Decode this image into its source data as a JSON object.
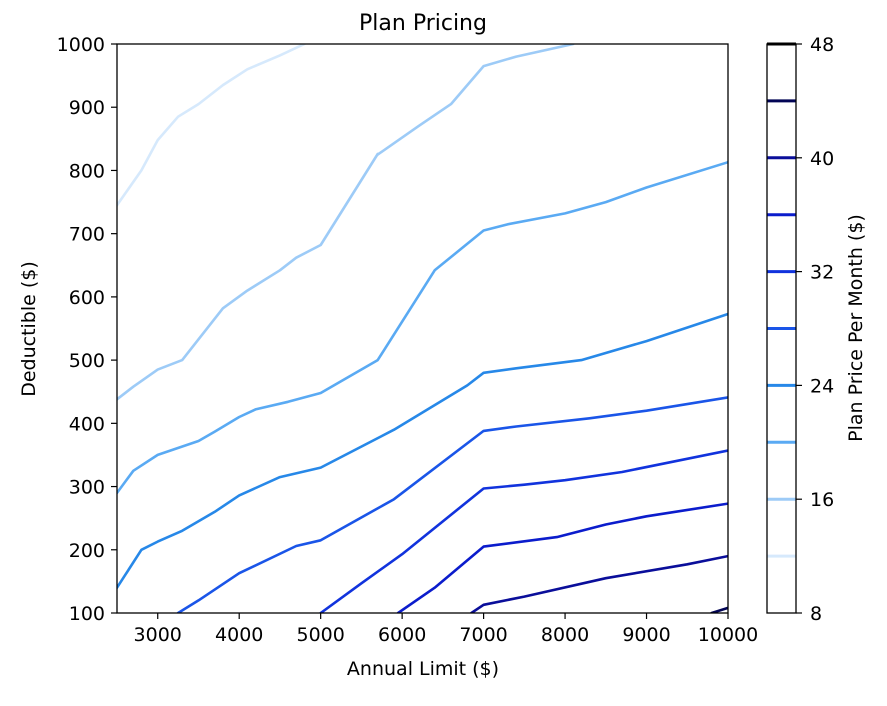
{
  "chart_data": {
    "type": "contour",
    "title": "Plan Pricing",
    "xlabel": "Annual Limit ($)",
    "ylabel": "Deductible ($)",
    "xlim": [
      2500,
      10000
    ],
    "ylim": [
      100,
      1000
    ],
    "x_ticks": [
      3000,
      4000,
      5000,
      6000,
      7000,
      8000,
      9000,
      10000
    ],
    "y_ticks": [
      100,
      200,
      300,
      400,
      500,
      600,
      700,
      800,
      900,
      1000
    ],
    "grid": false,
    "colorbar": {
      "label": "Plan Price Per Month ($)",
      "range": [
        8,
        48
      ],
      "ticks": [
        8,
        16,
        24,
        32,
        40,
        48
      ]
    },
    "contour_levels": [
      {
        "level": 12,
        "color": "#d6e9fc",
        "points": [
          [
            2500,
            745
          ],
          [
            2800,
            800
          ],
          [
            3000,
            848
          ],
          [
            3250,
            885
          ],
          [
            3500,
            905
          ],
          [
            3800,
            935
          ],
          [
            4100,
            960
          ],
          [
            4500,
            982
          ],
          [
            4800,
            1000
          ]
        ]
      },
      {
        "level": 16,
        "color": "#9dcbf7",
        "points": [
          [
            5700,
            825
          ],
          [
            6200,
            870
          ],
          [
            6600,
            905
          ],
          [
            7000,
            965
          ],
          [
            7400,
            980
          ],
          [
            8100,
            1000
          ]
        ]
      },
      {
        "level": 16,
        "color": "#9dcbf7",
        "points": [
          [
            2500,
            438
          ],
          [
            2700,
            458
          ],
          [
            3000,
            485
          ],
          [
            3300,
            500
          ],
          [
            3800,
            582
          ],
          [
            4100,
            610
          ],
          [
            4500,
            642
          ],
          [
            4700,
            662
          ],
          [
            5000,
            682
          ],
          [
            5700,
            826
          ]
        ]
      },
      {
        "level": 20,
        "color": "#5aaaf3",
        "points": [
          [
            2500,
            290
          ],
          [
            2700,
            325
          ],
          [
            3000,
            350
          ],
          [
            3500,
            372
          ],
          [
            3700,
            387
          ],
          [
            4000,
            410
          ],
          [
            4200,
            422
          ],
          [
            4600,
            434
          ],
          [
            5000,
            448
          ],
          [
            5700,
            500
          ],
          [
            6400,
            642
          ],
          [
            7000,
            705
          ],
          [
            7300,
            715
          ],
          [
            8000,
            732
          ],
          [
            8500,
            750
          ],
          [
            9000,
            773
          ],
          [
            10000,
            813
          ]
        ]
      },
      {
        "level": 24,
        "color": "#2788e8",
        "points": [
          [
            2500,
            140
          ],
          [
            2800,
            200
          ],
          [
            3000,
            213
          ],
          [
            3300,
            230
          ],
          [
            3700,
            260
          ],
          [
            4000,
            286
          ],
          [
            4500,
            315
          ],
          [
            5000,
            330
          ],
          [
            5900,
            390
          ],
          [
            6800,
            460
          ],
          [
            7000,
            480
          ],
          [
            7400,
            487
          ],
          [
            8200,
            500
          ],
          [
            9000,
            530
          ],
          [
            10000,
            573
          ]
        ]
      },
      {
        "level": 28,
        "color": "#1a55e8",
        "points": [
          [
            3250,
            100
          ],
          [
            3500,
            120
          ],
          [
            4000,
            163
          ],
          [
            4700,
            206
          ],
          [
            5000,
            215
          ],
          [
            5900,
            280
          ],
          [
            7000,
            388
          ],
          [
            7400,
            395
          ],
          [
            8300,
            408
          ],
          [
            9000,
            420
          ],
          [
            10000,
            441
          ]
        ]
      },
      {
        "level": 32,
        "color": "#1133dd",
        "points": [
          [
            5000,
            100
          ],
          [
            5500,
            147
          ],
          [
            6000,
            193
          ],
          [
            7000,
            297
          ],
          [
            7500,
            303
          ],
          [
            8000,
            310
          ],
          [
            8700,
            323
          ],
          [
            10000,
            357
          ]
        ]
      },
      {
        "level": 36,
        "color": "#0b1ccc",
        "points": [
          [
            5950,
            100
          ],
          [
            6400,
            140
          ],
          [
            7000,
            205
          ],
          [
            7900,
            220
          ],
          [
            8500,
            240
          ],
          [
            9000,
            253
          ],
          [
            10000,
            273
          ]
        ]
      },
      {
        "level": 40,
        "color": "#0a0e9a",
        "points": [
          [
            6850,
            100
          ],
          [
            7000,
            113
          ],
          [
            7500,
            126
          ],
          [
            8500,
            155
          ],
          [
            9500,
            177
          ],
          [
            10000,
            190
          ]
        ]
      },
      {
        "level": 44,
        "color": "#020455",
        "points": [
          [
            9800,
            100
          ],
          [
            10000,
            108
          ]
        ]
      }
    ],
    "colorbar_lines": [
      {
        "value": 12,
        "color": "#d6e9fc"
      },
      {
        "value": 16,
        "color": "#9dcbf7"
      },
      {
        "value": 20,
        "color": "#5aaaf3"
      },
      {
        "value": 24,
        "color": "#2788e8"
      },
      {
        "value": 28,
        "color": "#1a55e8"
      },
      {
        "value": 32,
        "color": "#1133dd"
      },
      {
        "value": 36,
        "color": "#0b1ccc"
      },
      {
        "value": 40,
        "color": "#0a0e9a"
      },
      {
        "value": 44,
        "color": "#020455"
      },
      {
        "value": 48,
        "color": "#000000"
      }
    ]
  }
}
